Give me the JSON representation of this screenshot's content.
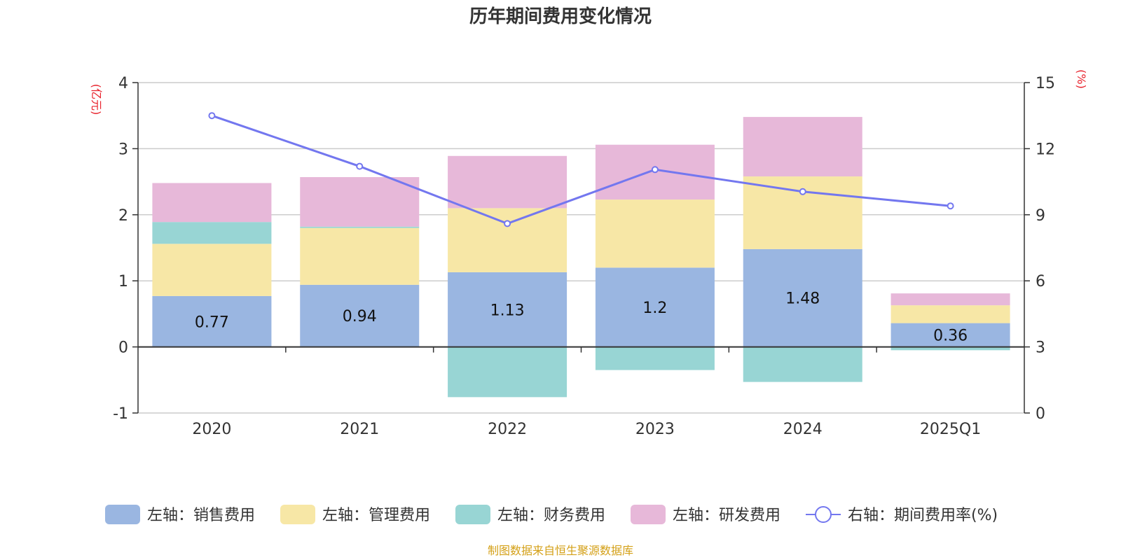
{
  "title": "历年期间费用变化情况",
  "source": "制图数据来自恒生聚源数据库",
  "colors": {
    "sales": "#9ab6e1",
    "admin": "#f7e7a6",
    "finance": "#98d5d4",
    "rnd": "#e7b8d9",
    "rate": "#7377ef",
    "unit": "#e8202a",
    "source": "#d4a017"
  },
  "chart_data": {
    "type": "bar",
    "stacked": true,
    "categories": [
      "2020",
      "2021",
      "2022",
      "2023",
      "2024",
      "2025Q1"
    ],
    "left_axis": {
      "unit": "(亿元)",
      "ylim": [
        -1,
        4
      ],
      "ticks": [
        "-1",
        "0",
        "1",
        "2",
        "3",
        "4"
      ]
    },
    "right_axis": {
      "unit": "(%)",
      "ylim": [
        0,
        15
      ],
      "ticks": [
        "0",
        "3",
        "6",
        "9",
        "12",
        "15"
      ]
    },
    "series": [
      {
        "key": "sales",
        "name": "左轴：销售费用",
        "values": [
          0.77,
          0.94,
          1.13,
          1.2,
          1.48,
          0.36
        ],
        "labels": [
          "0.77",
          "0.94",
          "1.13",
          "1.2",
          "1.48",
          "0.36"
        ]
      },
      {
        "key": "admin",
        "name": "左轴：管理费用",
        "values": [
          0.79,
          0.86,
          0.97,
          1.03,
          1.1,
          0.27
        ]
      },
      {
        "key": "finance",
        "name": "左轴：财务费用",
        "values": [
          0.33,
          0.02,
          -0.76,
          -0.35,
          -0.53,
          -0.05
        ]
      },
      {
        "key": "rnd",
        "name": "左轴：研发费用",
        "values": [
          0.59,
          0.75,
          0.79,
          0.83,
          0.9,
          0.18
        ]
      }
    ],
    "line": {
      "key": "rate",
      "name": "右轴：期间费用率(%)",
      "values": [
        13.5,
        11.2,
        8.6,
        11.05,
        10.05,
        9.4
      ]
    },
    "legend_position": "bottom"
  }
}
